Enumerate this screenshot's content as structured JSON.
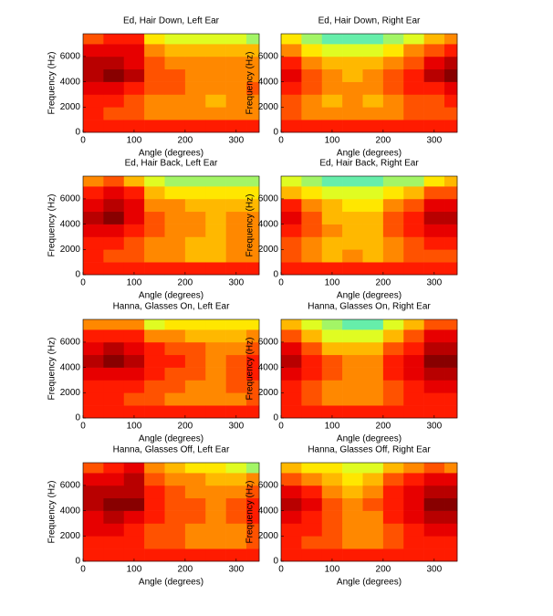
{
  "chart_data": [
    {
      "type": "heatmap",
      "title": "Ed, Hair Down, Left Ear",
      "xlabel": "Angle (degrees)",
      "ylabel": "Frequency (Hz)",
      "xlim": [
        0,
        345
      ],
      "xticks": [
        0,
        100,
        200,
        300
      ],
      "ylim": [
        0,
        7800
      ],
      "yticks": [
        0,
        2000,
        4000,
        6000
      ],
      "xbins": [
        0,
        40,
        80,
        120,
        160,
        200,
        240,
        280,
        320,
        345
      ],
      "ybins": [
        0,
        1000,
        2000,
        3000,
        4000,
        5000,
        6000,
        7000,
        7800
      ],
      "zlim": [
        0,
        10
      ],
      "colors": [
        "#66eeaa",
        "#ffff00",
        "#ff8800",
        "#ff0000",
        "#880000"
      ],
      "z": [
        [
          7,
          7,
          7,
          7,
          7,
          7,
          7,
          7,
          7
        ],
        [
          7,
          6,
          6,
          5,
          5,
          5,
          5,
          5,
          5
        ],
        [
          7,
          7,
          6,
          5,
          5,
          5,
          4,
          5,
          5
        ],
        [
          8,
          8,
          7,
          6,
          6,
          5,
          5,
          5,
          6
        ],
        [
          9,
          10,
          9,
          6,
          6,
          5,
          5,
          5,
          5
        ],
        [
          9,
          9,
          8,
          6,
          5,
          5,
          5,
          5,
          5
        ],
        [
          8,
          8,
          8,
          5,
          4,
          4,
          4,
          4,
          4
        ],
        [
          6,
          7,
          7,
          3,
          2,
          2,
          2,
          2,
          1
        ]
      ]
    },
    {
      "type": "heatmap",
      "title": "Ed, Hair Down, Right Ear",
      "xlabel": "Angle (degrees)",
      "ylabel": "Frequency (Hz)",
      "xlim": [
        0,
        345
      ],
      "xticks": [
        0,
        100,
        200,
        300
      ],
      "ylim": [
        0,
        7800
      ],
      "yticks": [
        0,
        2000,
        4000,
        6000
      ],
      "xbins": [
        0,
        40,
        80,
        120,
        160,
        200,
        240,
        280,
        320,
        345
      ],
      "ybins": [
        0,
        1000,
        2000,
        3000,
        4000,
        5000,
        6000,
        7000,
        7800
      ],
      "zlim": [
        0,
        10
      ],
      "colors": [
        "#66eeaa",
        "#ffff00",
        "#ff8800",
        "#ff0000",
        "#880000"
      ],
      "z": [
        [
          7,
          7,
          7,
          7,
          7,
          7,
          7,
          7,
          7
        ],
        [
          6,
          5,
          5,
          5,
          5,
          5,
          6,
          6,
          6
        ],
        [
          6,
          5,
          4,
          5,
          4,
          5,
          6,
          6,
          7
        ],
        [
          7,
          6,
          5,
          5,
          5,
          6,
          7,
          7,
          8
        ],
        [
          8,
          6,
          5,
          4,
          5,
          6,
          7,
          9,
          10
        ],
        [
          7,
          5,
          4,
          4,
          4,
          5,
          6,
          8,
          9
        ],
        [
          5,
          3,
          2,
          2,
          2,
          3,
          5,
          6,
          7
        ],
        [
          3,
          1,
          0,
          0,
          0,
          1,
          2,
          4,
          5
        ]
      ]
    },
    {
      "type": "heatmap",
      "title": "Ed, Hair Back, Left Ear",
      "xlabel": "Angle (degrees)",
      "ylabel": "Frequency (Hz)",
      "xlim": [
        0,
        345
      ],
      "xticks": [
        0,
        100,
        200,
        300
      ],
      "ylim": [
        0,
        7800
      ],
      "yticks": [
        0,
        2000,
        4000,
        6000
      ],
      "xbins": [
        0,
        40,
        80,
        120,
        160,
        200,
        240,
        280,
        320,
        345
      ],
      "ybins": [
        0,
        1000,
        2000,
        3000,
        4000,
        5000,
        6000,
        7000,
        7800
      ],
      "zlim": [
        0,
        10
      ],
      "colors": [
        "#66eeaa",
        "#ffff00",
        "#ff8800",
        "#ff0000",
        "#880000"
      ],
      "z": [
        [
          7,
          7,
          7,
          7,
          7,
          7,
          7,
          7,
          7
        ],
        [
          7,
          6,
          6,
          5,
          5,
          4,
          4,
          5,
          5
        ],
        [
          7,
          7,
          6,
          5,
          5,
          4,
          4,
          5,
          5
        ],
        [
          8,
          8,
          7,
          6,
          5,
          5,
          4,
          5,
          5
        ],
        [
          9,
          10,
          8,
          6,
          5,
          5,
          4,
          5,
          5
        ],
        [
          8,
          9,
          8,
          5,
          5,
          4,
          4,
          4,
          4
        ],
        [
          7,
          8,
          7,
          4,
          3,
          3,
          3,
          3,
          3
        ],
        [
          5,
          6,
          4,
          2,
          1,
          1,
          1,
          1,
          1
        ]
      ]
    },
    {
      "type": "heatmap",
      "title": "Ed, Hair Back, Right Ear",
      "xlabel": "Angle (degrees)",
      "ylabel": "Frequency (Hz)",
      "xlim": [
        0,
        345
      ],
      "xticks": [
        0,
        100,
        200,
        300
      ],
      "ylim": [
        0,
        7800
      ],
      "yticks": [
        0,
        2000,
        4000,
        6000
      ],
      "xbins": [
        0,
        40,
        80,
        120,
        160,
        200,
        240,
        280,
        320,
        345
      ],
      "ybins": [
        0,
        1000,
        2000,
        3000,
        4000,
        5000,
        6000,
        7000,
        7800
      ],
      "zlim": [
        0,
        10
      ],
      "colors": [
        "#66eeaa",
        "#ffff00",
        "#ff8800",
        "#ff0000",
        "#880000"
      ],
      "z": [
        [
          7,
          7,
          7,
          7,
          7,
          7,
          7,
          7,
          7
        ],
        [
          6,
          5,
          4,
          5,
          4,
          5,
          6,
          6,
          6
        ],
        [
          6,
          5,
          4,
          4,
          4,
          5,
          6,
          7,
          7
        ],
        [
          7,
          6,
          5,
          4,
          4,
          6,
          7,
          8,
          8
        ],
        [
          8,
          6,
          4,
          4,
          4,
          6,
          7,
          9,
          9
        ],
        [
          7,
          5,
          4,
          3,
          3,
          5,
          6,
          8,
          8
        ],
        [
          4,
          3,
          2,
          2,
          2,
          3,
          4,
          6,
          6
        ],
        [
          2,
          1,
          0,
          0,
          0,
          1,
          1,
          3,
          4
        ]
      ]
    },
    {
      "type": "heatmap",
      "title": "Hanna, Glasses On, Left Ear",
      "xlabel": "Angle (degrees)",
      "ylabel": "Frequency (Hz)",
      "xlim": [
        0,
        345
      ],
      "xticks": [
        0,
        100,
        200,
        300
      ],
      "ylim": [
        0,
        7800
      ],
      "yticks": [
        0,
        2000,
        4000,
        6000
      ],
      "xbins": [
        0,
        40,
        80,
        120,
        160,
        200,
        240,
        280,
        320,
        345
      ],
      "ybins": [
        0,
        1000,
        2000,
        3000,
        4000,
        5000,
        6000,
        7000,
        7800
      ],
      "zlim": [
        0,
        10
      ],
      "colors": [
        "#66eeaa",
        "#ffff00",
        "#ff8800",
        "#ff0000",
        "#880000"
      ],
      "z": [
        [
          7,
          7,
          7,
          7,
          7,
          7,
          7,
          7,
          7
        ],
        [
          7,
          7,
          6,
          6,
          5,
          5,
          5,
          5,
          6
        ],
        [
          7,
          7,
          7,
          6,
          6,
          5,
          5,
          6,
          6
        ],
        [
          8,
          8,
          8,
          7,
          6,
          6,
          5,
          6,
          7
        ],
        [
          9,
          10,
          9,
          7,
          7,
          6,
          5,
          6,
          7
        ],
        [
          8,
          9,
          8,
          7,
          6,
          6,
          5,
          5,
          6
        ],
        [
          7,
          7,
          7,
          5,
          5,
          4,
          4,
          4,
          5
        ],
        [
          5,
          5,
          5,
          2,
          3,
          3,
          3,
          3,
          3
        ]
      ]
    },
    {
      "type": "heatmap",
      "title": "Hanna, Glasses On, Right Ear",
      "xlabel": "Angle (degrees)",
      "ylabel": "Frequency (Hz)",
      "xlim": [
        0,
        345
      ],
      "xticks": [
        0,
        100,
        200,
        300
      ],
      "ylim": [
        0,
        7800
      ],
      "yticks": [
        0,
        2000,
        4000,
        6000
      ],
      "xbins": [
        0,
        40,
        80,
        120,
        160,
        200,
        240,
        280,
        320,
        345
      ],
      "ybins": [
        0,
        1000,
        2000,
        3000,
        4000,
        5000,
        6000,
        7000,
        7800
      ],
      "zlim": [
        0,
        10
      ],
      "colors": [
        "#66eeaa",
        "#ffff00",
        "#ff8800",
        "#ff0000",
        "#880000"
      ],
      "z": [
        [
          7,
          7,
          7,
          7,
          7,
          7,
          7,
          7,
          7
        ],
        [
          7,
          6,
          5,
          5,
          5,
          6,
          7,
          7,
          7
        ],
        [
          7,
          6,
          5,
          5,
          5,
          6,
          7,
          8,
          8
        ],
        [
          8,
          7,
          6,
          5,
          5,
          7,
          8,
          9,
          9
        ],
        [
          9,
          7,
          6,
          5,
          5,
          7,
          8,
          10,
          10
        ],
        [
          8,
          6,
          4,
          4,
          4,
          6,
          7,
          9,
          9
        ],
        [
          6,
          4,
          2,
          2,
          2,
          4,
          6,
          8,
          8
        ],
        [
          4,
          2,
          1,
          0,
          0,
          2,
          4,
          6,
          6
        ]
      ]
    },
    {
      "type": "heatmap",
      "title": "Hanna, Glasses Off, Left Ear",
      "xlabel": "Angle (degrees)",
      "ylabel": "Frequency (Hz)",
      "xlim": [
        0,
        345
      ],
      "xticks": [
        0,
        100,
        200,
        300
      ],
      "ylim": [
        0,
        7800
      ],
      "yticks": [
        0,
        2000,
        4000,
        6000
      ],
      "xbins": [
        0,
        40,
        80,
        120,
        160,
        200,
        240,
        280,
        320,
        345
      ],
      "ybins": [
        0,
        1000,
        2000,
        3000,
        4000,
        5000,
        6000,
        7000,
        7800
      ],
      "zlim": [
        0,
        10
      ],
      "colors": [
        "#66eeaa",
        "#ffff00",
        "#ff8800",
        "#ff0000",
        "#880000"
      ],
      "z": [
        [
          7,
          7,
          7,
          7,
          7,
          7,
          7,
          7,
          7
        ],
        [
          7,
          7,
          7,
          6,
          6,
          5,
          5,
          5,
          6
        ],
        [
          8,
          8,
          7,
          6,
          6,
          5,
          5,
          5,
          6
        ],
        [
          8,
          9,
          8,
          7,
          6,
          6,
          5,
          6,
          7
        ],
        [
          9,
          10,
          10,
          7,
          6,
          6,
          5,
          6,
          7
        ],
        [
          9,
          9,
          9,
          7,
          6,
          5,
          5,
          5,
          6
        ],
        [
          8,
          8,
          9,
          6,
          5,
          5,
          4,
          4,
          5
        ],
        [
          6,
          7,
          8,
          5,
          4,
          3,
          3,
          2,
          1
        ]
      ]
    },
    {
      "type": "heatmap",
      "title": "Hanna, Glasses Off, Right Ear",
      "xlabel": "Angle (degrees)",
      "ylabel": "Frequency (Hz)",
      "xlim": [
        0,
        345
      ],
      "xticks": [
        0,
        100,
        200,
        300
      ],
      "ylim": [
        0,
        7800
      ],
      "yticks": [
        0,
        2000,
        4000,
        6000
      ],
      "xbins": [
        0,
        40,
        80,
        120,
        160,
        200,
        240,
        280,
        320,
        345
      ],
      "ybins": [
        0,
        1000,
        2000,
        3000,
        4000,
        5000,
        6000,
        7000,
        7800
      ],
      "zlim": [
        0,
        10
      ],
      "colors": [
        "#66eeaa",
        "#ffff00",
        "#ff8800",
        "#ff0000",
        "#880000"
      ],
      "z": [
        [
          7,
          7,
          7,
          7,
          7,
          7,
          7,
          7,
          7
        ],
        [
          7,
          6,
          6,
          5,
          5,
          6,
          7,
          7,
          7
        ],
        [
          7,
          7,
          6,
          5,
          5,
          6,
          7,
          8,
          8
        ],
        [
          8,
          7,
          6,
          5,
          5,
          7,
          8,
          9,
          9
        ],
        [
          9,
          8,
          6,
          5,
          6,
          7,
          8,
          10,
          10
        ],
        [
          8,
          7,
          5,
          4,
          5,
          7,
          8,
          9,
          9
        ],
        [
          6,
          5,
          4,
          3,
          4,
          6,
          7,
          8,
          8
        ],
        [
          4,
          3,
          3,
          2,
          2,
          4,
          5,
          6,
          5
        ]
      ]
    }
  ]
}
